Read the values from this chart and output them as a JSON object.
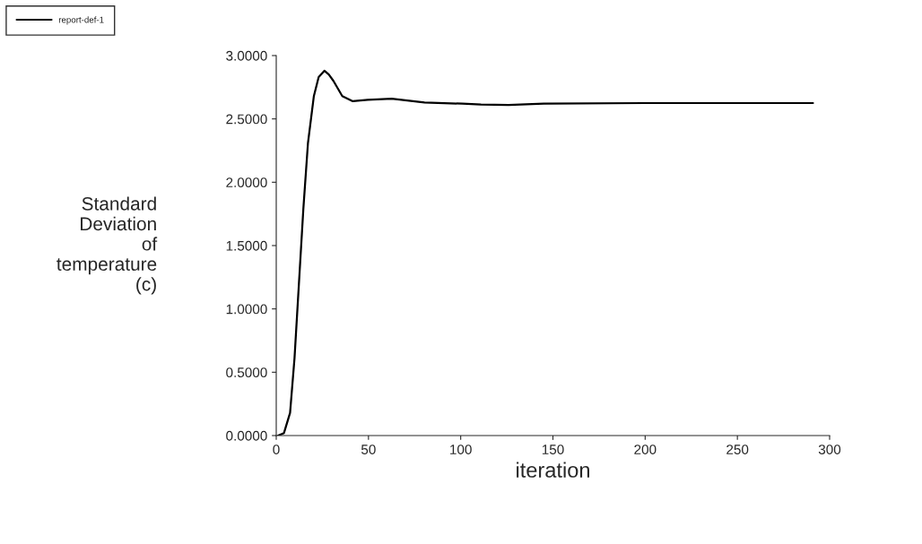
{
  "chart_data": {
    "type": "line",
    "xlabel": "iteration",
    "ylabel": "Standard\nDeviation\nof\ntemperature\n(c)",
    "xlim": [
      0,
      300
    ],
    "xticks": [
      0,
      50,
      100,
      150,
      200,
      250,
      300
    ],
    "ylim": [
      0,
      3
    ],
    "yticks": [
      {
        "value": 0,
        "label": "0.0000"
      },
      {
        "value": 0.5,
        "label": "0.5000"
      },
      {
        "value": 1,
        "label": "1.0000"
      },
      {
        "value": 1.5,
        "label": "1.5000"
      },
      {
        "value": 2,
        "label": "2.0000"
      },
      {
        "value": 2.5,
        "label": "2.5000"
      },
      {
        "value": 3,
        "label": "3.0000"
      }
    ],
    "grid": false,
    "legend": "top left",
    "series": [
      {
        "name": "report-def-1",
        "color": "#000000",
        "x": [
          1,
          4.2,
          7.5,
          9.9,
          12.3,
          14.7,
          17.2,
          20.4,
          23,
          26.1,
          28.5,
          31,
          35.8,
          41.5,
          49.6,
          62.6,
          80.4,
          101,
          111,
          126,
          145,
          200,
          250,
          291
        ],
        "values": [
          0,
          0.02,
          0.18,
          0.61,
          1.2,
          1.79,
          2.31,
          2.68,
          2.83,
          2.88,
          2.85,
          2.8,
          2.68,
          2.64,
          2.65,
          2.66,
          2.63,
          2.62,
          2.613,
          2.61,
          2.62,
          2.625,
          2.625,
          2.625
        ]
      }
    ]
  }
}
